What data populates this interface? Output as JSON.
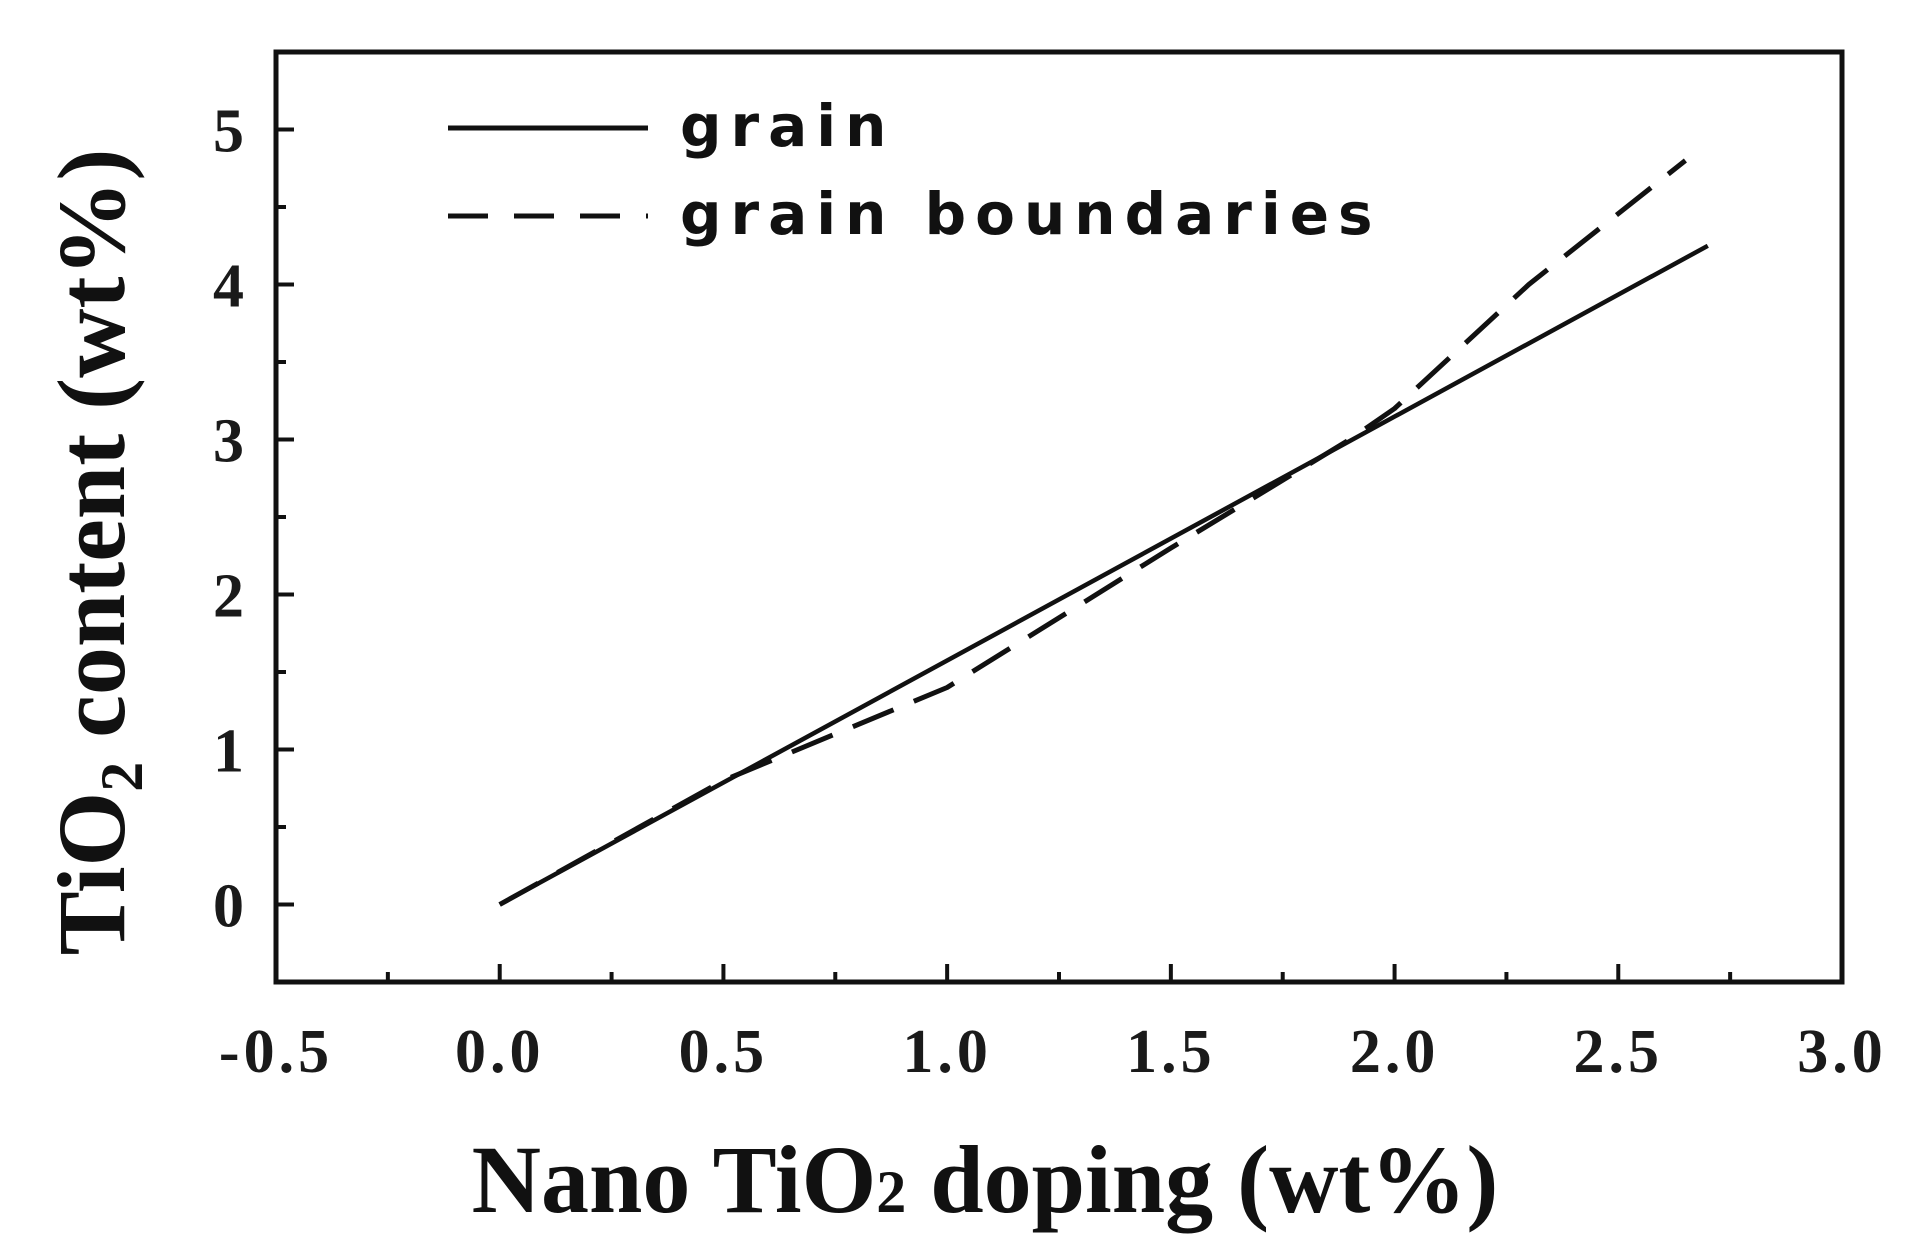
{
  "chart_data": {
    "type": "line",
    "xlabel": {
      "prefix": "Nano TiO",
      "sub": "2",
      "suffix": " doping (wt%)"
    },
    "ylabel": {
      "prefix": "TiO",
      "sub": "2",
      "suffix": " content (wt%)"
    },
    "xlim": [
      -0.5,
      3.0
    ],
    "ylim": [
      -0.5,
      5.5
    ],
    "xticks": [
      -0.5,
      0.0,
      0.5,
      1.0,
      1.5,
      2.0,
      2.5,
      3.0
    ],
    "xtick_labels": [
      "-0.5",
      "0.0",
      "0.5",
      "1.0",
      "1.5",
      "2.0",
      "2.5",
      "3.0"
    ],
    "yticks": [
      0,
      1,
      2,
      3,
      4,
      5
    ],
    "ytick_labels": [
      "0",
      "1",
      "2",
      "3",
      "4",
      "5"
    ],
    "legend_position": "top-left",
    "series": [
      {
        "name": "grain",
        "style": "solid",
        "x": [
          0.0,
          2.7
        ],
        "y": [
          0.0,
          4.25
        ]
      },
      {
        "name": "grain boundaries",
        "style": "dashed",
        "x": [
          0.0,
          0.5,
          1.0,
          1.5,
          1.9,
          2.0,
          2.3,
          2.65
        ],
        "y": [
          0.0,
          0.8,
          1.4,
          2.3,
          3.0,
          3.2,
          4.0,
          4.8
        ]
      }
    ],
    "colors": {
      "line": "#111111",
      "axis": "#111111"
    }
  }
}
